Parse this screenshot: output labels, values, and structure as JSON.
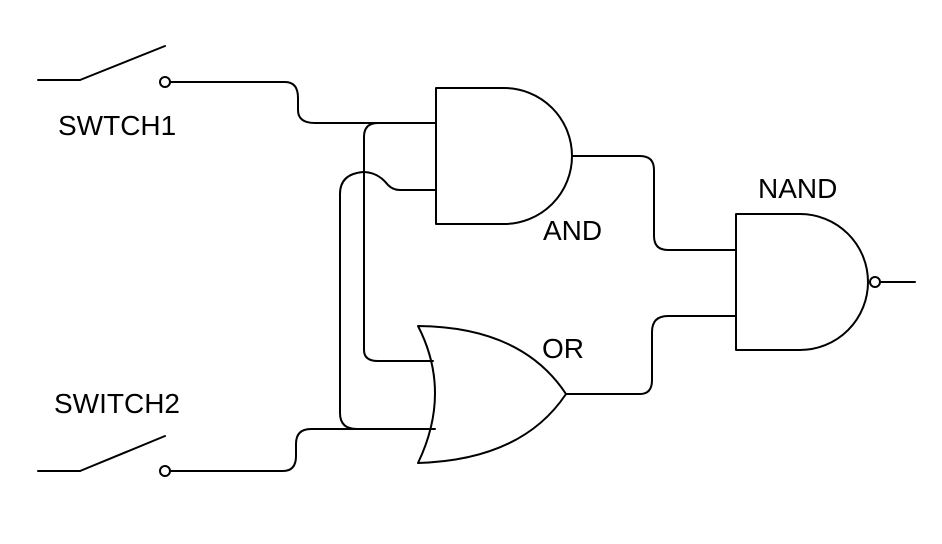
{
  "labels": {
    "switch1": "SWTCH1",
    "switch2": "SWITCH2",
    "and_gate": "AND",
    "or_gate": "OR",
    "nand_gate": "NAND"
  },
  "colors": {
    "background": "#ffffff",
    "stroke": "#000000"
  }
}
